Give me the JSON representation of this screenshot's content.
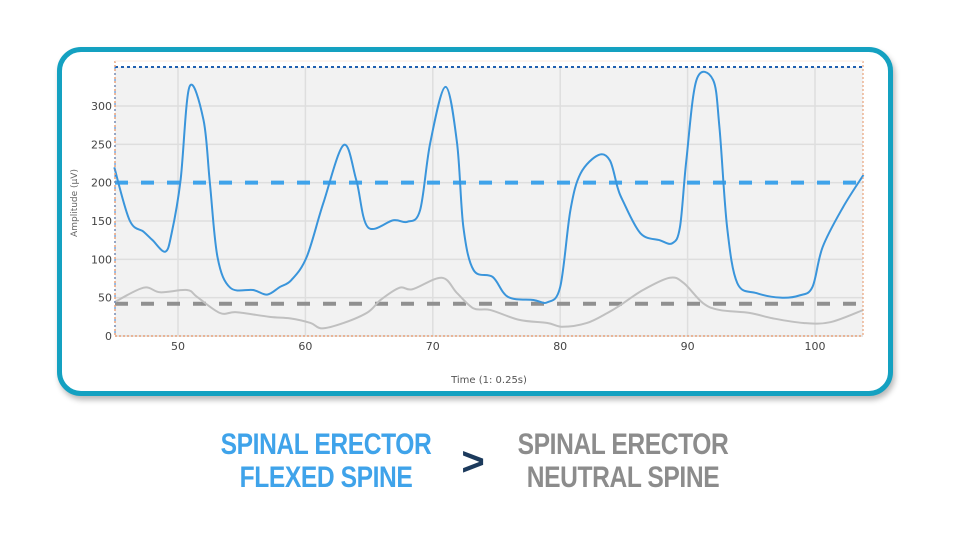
{
  "chart_data": {
    "type": "line",
    "title": "",
    "xlabel": "Time (1: 0.25s)",
    "ylabel": "Amplitude (μV)",
    "xlim": [
      45,
      104
    ],
    "ylim": [
      0,
      350
    ],
    "x_ticks": [
      50,
      60,
      70,
      80,
      90,
      100
    ],
    "y_ticks": [
      0,
      50,
      100,
      150,
      200,
      250,
      300
    ],
    "grid": true,
    "legend": "none",
    "series": [
      {
        "name": "Spinal Erector Flexed Spine",
        "color": "#3a95db",
        "points": [
          [
            45,
            220
          ],
          [
            46.2,
            151
          ],
          [
            47.3,
            136
          ],
          [
            48,
            125
          ],
          [
            49,
            110
          ],
          [
            49.5,
            134
          ],
          [
            50.2,
            203
          ],
          [
            50.9,
            325
          ],
          [
            52,
            282
          ],
          [
            52.5,
            200
          ],
          [
            53.1,
            103
          ],
          [
            54.1,
            63
          ],
          [
            55.9,
            60
          ],
          [
            57,
            54
          ],
          [
            58,
            64
          ],
          [
            58.9,
            73
          ],
          [
            60.1,
            103
          ],
          [
            61.4,
            173
          ],
          [
            63,
            249
          ],
          [
            64,
            203
          ],
          [
            64.9,
            142
          ],
          [
            66.9,
            151
          ],
          [
            68,
            149
          ],
          [
            69,
            164
          ],
          [
            69.8,
            252
          ],
          [
            71,
            325
          ],
          [
            71.9,
            252
          ],
          [
            72.4,
            142
          ],
          [
            73.2,
            86
          ],
          [
            74.7,
            77
          ],
          [
            75.9,
            51
          ],
          [
            77.9,
            47
          ],
          [
            79,
            44
          ],
          [
            80,
            64
          ],
          [
            80.8,
            164
          ],
          [
            81.6,
            212
          ],
          [
            83,
            236
          ],
          [
            83.9,
            229
          ],
          [
            84.5,
            194
          ],
          [
            84.9,
            177
          ],
          [
            86.3,
            134
          ],
          [
            87.8,
            125
          ],
          [
            88.8,
            121
          ],
          [
            89.4,
            142
          ],
          [
            89.9,
            229
          ],
          [
            90.7,
            334
          ],
          [
            92,
            334
          ],
          [
            92.5,
            272
          ],
          [
            93.1,
            142
          ],
          [
            93.9,
            69
          ],
          [
            95.4,
            56
          ],
          [
            97.3,
            50
          ],
          [
            98.8,
            53
          ],
          [
            99.8,
            64
          ],
          [
            100.6,
            116
          ],
          [
            102.2,
            168
          ],
          [
            103.8,
            210
          ]
        ]
      },
      {
        "name": "Spinal Erector Neutral Spine",
        "color": "#c0c0c0",
        "points": [
          [
            45,
            44
          ],
          [
            47.3,
            63
          ],
          [
            48.6,
            57
          ],
          [
            50.7,
            60
          ],
          [
            51.5,
            51
          ],
          [
            53.3,
            30
          ],
          [
            54.6,
            31
          ],
          [
            57.2,
            25
          ],
          [
            58.8,
            23
          ],
          [
            60.4,
            17
          ],
          [
            61.3,
            10
          ],
          [
            63,
            17
          ],
          [
            64.9,
            31
          ],
          [
            65.9,
            47
          ],
          [
            67.4,
            63
          ],
          [
            68.4,
            61
          ],
          [
            70.7,
            76
          ],
          [
            71.9,
            56
          ],
          [
            73.2,
            36
          ],
          [
            74.5,
            34
          ],
          [
            76.8,
            21
          ],
          [
            79,
            17
          ],
          [
            80.2,
            12
          ],
          [
            82.1,
            17
          ],
          [
            83.7,
            30
          ],
          [
            84.7,
            40
          ],
          [
            86.5,
            60
          ],
          [
            88.6,
            76
          ],
          [
            89.7,
            69
          ],
          [
            91.2,
            43
          ],
          [
            92.5,
            34
          ],
          [
            94.9,
            30
          ],
          [
            96.7,
            23
          ],
          [
            99.1,
            17
          ],
          [
            101.2,
            18
          ],
          [
            103.8,
            34
          ]
        ]
      }
    ],
    "reference_lines": [
      {
        "name": "flexed-threshold",
        "y": 200,
        "style": "dashed",
        "color": "#3fa3ea"
      },
      {
        "name": "neutral-threshold",
        "y": 42,
        "style": "dashed",
        "color": "#909090"
      },
      {
        "name": "upper-bound",
        "y": 350,
        "style": "dotted",
        "color": "#1f5fb0"
      }
    ]
  },
  "captions": {
    "left_line1": "SPINAL ERECTOR",
    "left_line2": "FLEXED SPINE",
    "comparator": ">",
    "right_line1": "SPINAL ERECTOR",
    "right_line2": "NEUTRAL SPINE"
  },
  "colors": {
    "frame": "#14a1c1",
    "flexed": "#3fa3ea",
    "neutral": "#8c8c8c",
    "comparator": "#1c3a5c",
    "plot_bg": "#f2f2f2"
  }
}
